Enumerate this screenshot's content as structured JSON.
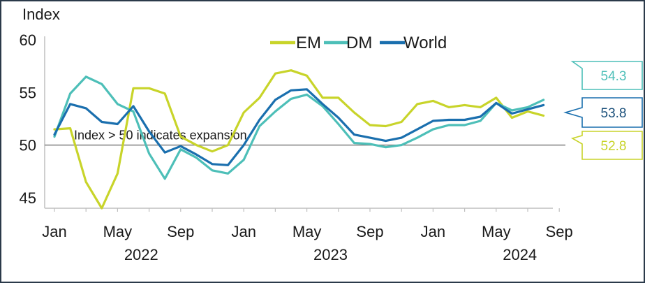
{
  "chart_data": {
    "type": "line",
    "title": "Index",
    "xlabel": "",
    "ylabel": "Index",
    "ylim": [
      44,
      61
    ],
    "yticks": [
      45,
      50,
      55,
      60
    ],
    "x": [
      "2022-01",
      "2022-02",
      "2022-03",
      "2022-04",
      "2022-05",
      "2022-06",
      "2022-07",
      "2022-08",
      "2022-09",
      "2022-10",
      "2022-11",
      "2022-12",
      "2023-01",
      "2023-02",
      "2023-03",
      "2023-04",
      "2023-05",
      "2023-06",
      "2023-07",
      "2023-08",
      "2023-09",
      "2023-10",
      "2023-11",
      "2023-12",
      "2024-01",
      "2024-02",
      "2024-03",
      "2024-04",
      "2024-05",
      "2024-06",
      "2024-07",
      "2024-08"
    ],
    "month_ticks": [
      {
        "label": "Jan",
        "index": 0
      },
      {
        "label": "May",
        "index": 4
      },
      {
        "label": "Sep",
        "index": 8
      },
      {
        "label": "Jan",
        "index": 12
      },
      {
        "label": "May",
        "index": 16
      },
      {
        "label": "Sep",
        "index": 20
      },
      {
        "label": "Jan",
        "index": 24
      },
      {
        "label": "May",
        "index": 28
      },
      {
        "label": "Sep",
        "index": 32
      }
    ],
    "year_labels": [
      {
        "label": "2022",
        "center_index": 5.5
      },
      {
        "label": "2023",
        "center_index": 17.5
      },
      {
        "label": "2024",
        "center_index": 29.5
      }
    ],
    "reference_line": {
      "value": 50,
      "label": "Index > 50 indicates expansion"
    },
    "legend_placement": "top-right",
    "series": [
      {
        "name": "EM",
        "color": "#c8d42a",
        "values": [
          51.5,
          51.6,
          46.5,
          44.0,
          47.3,
          55.4,
          55.4,
          54.9,
          50.8,
          50.0,
          49.4,
          50.0,
          53.1,
          54.5,
          56.8,
          57.1,
          56.6,
          54.5,
          54.5,
          53.1,
          51.9,
          51.8,
          52.2,
          53.9,
          54.2,
          53.6,
          53.8,
          53.6,
          54.5,
          52.6,
          53.2,
          52.8
        ],
        "callout": "52.8"
      },
      {
        "name": "DM",
        "color": "#4dbfb8",
        "values": [
          50.8,
          54.9,
          56.5,
          55.8,
          53.9,
          53.2,
          49.2,
          46.8,
          49.6,
          48.8,
          47.6,
          47.3,
          48.6,
          51.8,
          53.2,
          54.4,
          54.8,
          53.7,
          52.0,
          50.2,
          50.1,
          49.8,
          50.0,
          50.7,
          51.5,
          51.9,
          51.9,
          52.3,
          54.0,
          53.3,
          53.6,
          54.3
        ],
        "callout": "54.3"
      },
      {
        "name": "World",
        "color": "#1a6fae",
        "values": [
          51.0,
          53.9,
          53.5,
          52.2,
          52.0,
          53.7,
          51.3,
          49.3,
          49.9,
          49.1,
          48.2,
          48.1,
          50.0,
          52.4,
          54.3,
          55.2,
          55.3,
          53.9,
          52.6,
          51.0,
          50.7,
          50.4,
          50.7,
          51.5,
          52.3,
          52.4,
          52.4,
          52.7,
          54.0,
          53.0,
          53.4,
          53.8
        ],
        "callout": "53.8"
      }
    ]
  }
}
